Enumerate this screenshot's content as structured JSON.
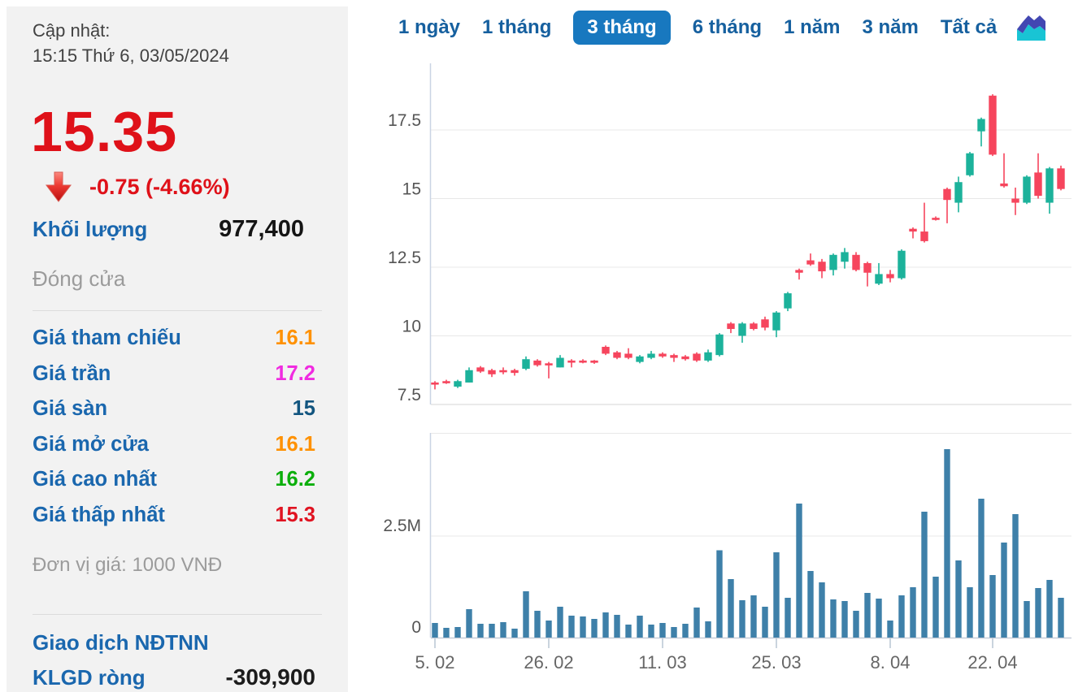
{
  "sidebar": {
    "updated_label": "Cập nhật:",
    "updated_time": "15:15 Thứ 6, 03/05/2024",
    "last_price": "15.35",
    "change": "-0.75 (-4.66%)",
    "trend": "down",
    "price_color": "#df1119",
    "label_color": "#1a67ae",
    "volume_label": "Khối lượng",
    "volume_value": "977,400",
    "close_label": "Đóng cửa",
    "stats": [
      {
        "label": "Giá tham chiếu",
        "value": "16.1",
        "color": "#ff9100"
      },
      {
        "label": "Giá trần",
        "value": "17.2",
        "color": "#f02be0"
      },
      {
        "label": "Giá sàn",
        "value": "15",
        "color": "#12557f"
      },
      {
        "label": "Giá mở cửa",
        "value": "16.1",
        "color": "#ff9100"
      },
      {
        "label": "Giá cao nhất",
        "value": "16.2",
        "color": "#0caf0c"
      },
      {
        "label": "Giá thấp nhất",
        "value": "15.3",
        "color": "#e01321"
      }
    ],
    "unit_note": "Đơn vị giá: 1000 VNĐ",
    "foreign_section_label": "Giao dịch NĐTNN",
    "net_volume_label": "KLGD ròng",
    "net_volume_value": "-309,900"
  },
  "tabs": {
    "active_bg": "#1878bf",
    "items": [
      {
        "label": "1 ngày",
        "active": false
      },
      {
        "label": "1 tháng",
        "active": false
      },
      {
        "label": "3 tháng",
        "active": true
      },
      {
        "label": "6 tháng",
        "active": false
      },
      {
        "label": "1 năm",
        "active": false
      },
      {
        "label": "3 năm",
        "active": false
      },
      {
        "label": "Tất cả",
        "active": false
      }
    ]
  },
  "chart_data": {
    "type": "candlestick+volume",
    "title": "",
    "colors": {
      "up": "#1cb29b",
      "down": "#f6455d",
      "volume": "#3e80a9"
    },
    "dates": [
      "05/02",
      "06/02",
      "07/02",
      "15/02",
      "16/02",
      "19/02",
      "20/02",
      "21/02",
      "22/02",
      "23/02",
      "26/02",
      "27/02",
      "28/02",
      "29/02",
      "01/03",
      "04/03",
      "05/03",
      "06/03",
      "07/03",
      "08/03",
      "11/03",
      "12/03",
      "13/03",
      "14/03",
      "15/03",
      "18/03",
      "19/03",
      "20/03",
      "21/03",
      "22/03",
      "25/03",
      "26/03",
      "27/03",
      "28/03",
      "29/03",
      "01/04",
      "02/04",
      "03/04",
      "04/04",
      "05/04",
      "08/04",
      "09/04",
      "10/04",
      "11/04",
      "12/04",
      "15/04",
      "16/04",
      "17/04",
      "19/04",
      "22/04",
      "23/04",
      "24/04",
      "25/04",
      "26/04",
      "02/05",
      "03/05"
    ],
    "series": [
      {
        "name": "price",
        "type": "candlestick",
        "unit": "1000 VND",
        "ohlc": [
          [
            8.3,
            8.35,
            8.05,
            8.25
          ],
          [
            8.35,
            8.4,
            8.25,
            8.3
          ],
          [
            8.15,
            8.4,
            8.1,
            8.35
          ],
          [
            8.3,
            8.85,
            8.3,
            8.75
          ],
          [
            8.85,
            8.9,
            8.65,
            8.7
          ],
          [
            8.75,
            8.8,
            8.5,
            8.6
          ],
          [
            8.75,
            8.85,
            8.6,
            8.7
          ],
          [
            8.75,
            8.8,
            8.55,
            8.65
          ],
          [
            8.8,
            9.25,
            8.75,
            9.15
          ],
          [
            9.1,
            9.15,
            8.88,
            8.93
          ],
          [
            9.0,
            9.05,
            8.45,
            8.95
          ],
          [
            8.85,
            9.3,
            8.85,
            9.2
          ],
          [
            9.1,
            9.15,
            8.85,
            9.05
          ],
          [
            9.1,
            9.15,
            9.0,
            9.05
          ],
          [
            9.1,
            9.12,
            8.98,
            9.02
          ],
          [
            9.6,
            9.65,
            9.3,
            9.35
          ],
          [
            9.4,
            9.45,
            9.15,
            9.2
          ],
          [
            9.35,
            9.55,
            9.15,
            9.2
          ],
          [
            9.05,
            9.3,
            9.0,
            9.25
          ],
          [
            9.2,
            9.45,
            9.15,
            9.35
          ],
          [
            9.35,
            9.4,
            9.2,
            9.25
          ],
          [
            9.3,
            9.35,
            9.05,
            9.2
          ],
          [
            9.25,
            9.3,
            9.1,
            9.15
          ],
          [
            9.35,
            9.4,
            9.05,
            9.1
          ],
          [
            9.1,
            9.5,
            9.05,
            9.4
          ],
          [
            9.3,
            10.1,
            9.25,
            10.05
          ],
          [
            10.45,
            10.5,
            10.1,
            10.25
          ],
          [
            10.0,
            10.5,
            9.75,
            10.45
          ],
          [
            10.45,
            10.5,
            10.2,
            10.25
          ],
          [
            10.6,
            10.7,
            10.2,
            10.3
          ],
          [
            10.2,
            10.9,
            9.95,
            10.85
          ],
          [
            11.0,
            11.6,
            10.9,
            11.55
          ],
          [
            12.4,
            12.45,
            12.05,
            12.3
          ],
          [
            12.75,
            13.0,
            12.55,
            12.6
          ],
          [
            12.7,
            12.8,
            12.1,
            12.35
          ],
          [
            12.4,
            13.0,
            12.2,
            12.95
          ],
          [
            12.7,
            13.2,
            12.45,
            13.05
          ],
          [
            12.95,
            13.05,
            12.35,
            12.4
          ],
          [
            12.65,
            12.7,
            11.8,
            12.3
          ],
          [
            11.9,
            12.65,
            11.85,
            12.25
          ],
          [
            12.25,
            12.4,
            11.95,
            12.1
          ],
          [
            12.1,
            13.15,
            12.05,
            13.1
          ],
          [
            13.9,
            13.95,
            13.55,
            13.8
          ],
          [
            13.8,
            14.85,
            13.4,
            13.45
          ],
          [
            14.3,
            14.35,
            14.2,
            14.25
          ],
          [
            15.35,
            15.4,
            14.1,
            14.95
          ],
          [
            14.85,
            15.8,
            14.5,
            15.6
          ],
          [
            15.85,
            16.7,
            15.8,
            16.65
          ],
          [
            17.45,
            17.95,
            16.9,
            17.9
          ],
          [
            18.75,
            18.8,
            16.55,
            16.6
          ],
          [
            15.55,
            16.65,
            15.4,
            15.45
          ],
          [
            15.0,
            15.4,
            14.4,
            14.85
          ],
          [
            14.85,
            15.85,
            14.8,
            15.8
          ],
          [
            15.95,
            16.65,
            15.0,
            15.1
          ],
          [
            14.85,
            16.15,
            14.45,
            16.1
          ],
          [
            16.1,
            16.2,
            15.3,
            15.35
          ]
        ]
      },
      {
        "name": "volume",
        "type": "bar",
        "unit": "shares",
        "values_millions": [
          0.36,
          0.24,
          0.26,
          0.7,
          0.34,
          0.34,
          0.38,
          0.22,
          1.14,
          0.66,
          0.42,
          0.76,
          0.54,
          0.52,
          0.46,
          0.62,
          0.56,
          0.32,
          0.54,
          0.32,
          0.36,
          0.26,
          0.34,
          0.74,
          0.4,
          2.15,
          1.44,
          0.92,
          1.04,
          0.76,
          2.1,
          0.98,
          3.3,
          1.64,
          1.36,
          0.94,
          0.9,
          0.66,
          1.1,
          0.96,
          0.42,
          1.04,
          1.24,
          3.1,
          1.5,
          4.64,
          1.9,
          1.24,
          3.42,
          1.54,
          2.34,
          3.04,
          0.9,
          1.22,
          1.42,
          0.98
        ]
      }
    ],
    "price_axis": {
      "ticks": [
        7.5,
        10,
        12.5,
        15,
        17.5
      ],
      "labels": [
        "7.5",
        "10",
        "12.5",
        "15",
        "17.5"
      ],
      "range": [
        7.5,
        19.6
      ],
      "grid": true
    },
    "volume_axis": {
      "ticks": [
        0,
        2500000
      ],
      "labels": [
        "0",
        "2.5M"
      ],
      "range": [
        0,
        5000000
      ],
      "grid": true
    },
    "x_axis": {
      "tick_labels": [
        {
          "index": 0,
          "label": "5. 02"
        },
        {
          "index": 10,
          "label": "26. 02"
        },
        {
          "index": 20,
          "label": "11. 03"
        },
        {
          "index": 30,
          "label": "25. 03"
        },
        {
          "index": 40,
          "label": "8. 04"
        },
        {
          "index": 49,
          "label": "22. 04"
        }
      ]
    }
  }
}
